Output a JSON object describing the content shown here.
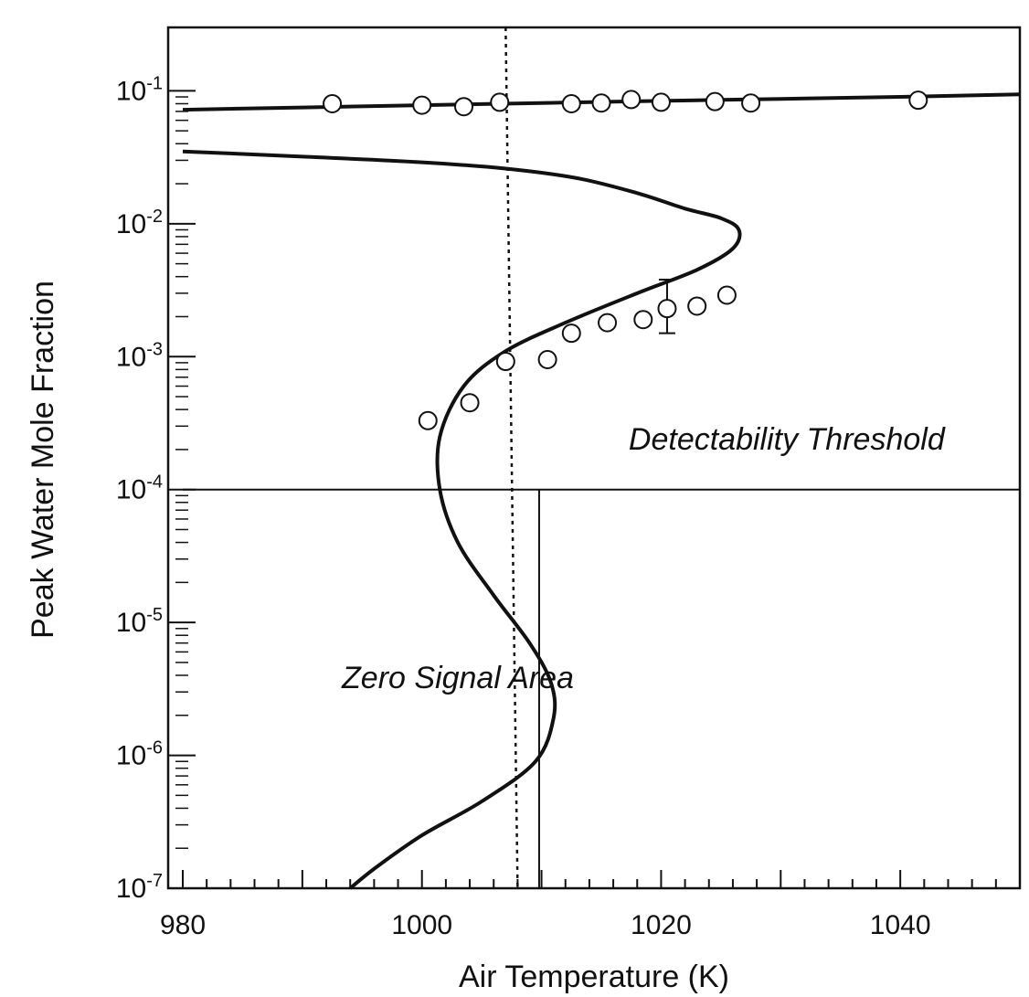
{
  "chart_data": {
    "type": "line",
    "xlabel": "Air Temperature (K)",
    "ylabel": "Peak Water Mole Fraction",
    "xlim": [
      980,
      1050
    ],
    "ylim": [
      1e-07,
      0.3
    ],
    "yscale": "log",
    "x_ticks": [
      980,
      1000,
      1020,
      1040
    ],
    "y_ticks": [
      {
        "value": 1e-07,
        "base": "10",
        "exp": "-7"
      },
      {
        "value": 1e-06,
        "base": "10",
        "exp": "-6"
      },
      {
        "value": 1e-05,
        "base": "10",
        "exp": "-5"
      },
      {
        "value": 0.0001,
        "base": "10",
        "exp": "-4"
      },
      {
        "value": 0.001,
        "base": "10",
        "exp": "-3"
      },
      {
        "value": 0.01,
        "base": "10",
        "exp": "-2"
      },
      {
        "value": 0.1,
        "base": "10",
        "exp": "-1"
      }
    ],
    "grid": false,
    "series": [
      {
        "kind": "line",
        "x": [
          980,
          990,
          1000,
          1010,
          1020,
          1030,
          1040,
          1050
        ],
        "y": [
          0.072,
          0.075,
          0.078,
          0.081,
          0.084,
          0.087,
          0.09,
          0.094
        ]
      },
      {
        "kind": "line",
        "x": [
          980,
          990,
          1000,
          1007,
          1013,
          1018,
          1022,
          1025,
          1026.5,
          1026,
          1023,
          1018,
          1012,
          1007,
          1003.5,
          1001.5,
          1001.5,
          1003,
          1006,
          1009,
          1010.8,
          1011,
          1009.5,
          1005,
          1000,
          996,
          994
        ],
        "y": [
          0.035,
          0.032,
          0.029,
          0.026,
          0.022,
          0.017,
          0.013,
          0.011,
          0.009,
          0.0065,
          0.0045,
          0.003,
          0.0018,
          0.0011,
          0.0006,
          0.00025,
          0.0001,
          4e-05,
          1.6e-05,
          7e-06,
          3.5e-06,
          1.9e-06,
          9e-07,
          4.5e-07,
          2.5e-07,
          1.4e-07,
          1e-07
        ]
      },
      {
        "kind": "scatter",
        "x": [
          992.5,
          1000,
          1003.5,
          1006.5,
          1012.5,
          1015,
          1017.5,
          1020,
          1024.5,
          1027.5,
          1041.5
        ],
        "y": [
          0.08,
          0.078,
          0.076,
          0.082,
          0.08,
          0.081,
          0.086,
          0.082,
          0.083,
          0.081,
          0.085
        ]
      },
      {
        "kind": "scatter",
        "x": [
          1000.5,
          1004,
          1007,
          1010.5,
          1012.5,
          1015.5,
          1018.5,
          1020.5,
          1023,
          1025.5
        ],
        "y": [
          0.00033,
          0.00045,
          0.00092,
          0.00095,
          0.0015,
          0.0018,
          0.0019,
          0.0023,
          0.0024,
          0.0029
        ],
        "error_bar": {
          "x": 1020.5,
          "low": 0.0015,
          "high": 0.0038
        }
      },
      {
        "kind": "vline",
        "style": "dotted",
        "x": [
          1007,
          1008
        ],
        "y": [
          0.3,
          1e-07
        ]
      },
      {
        "kind": "vline",
        "style": "solid",
        "x": [
          1009.8,
          1009.8
        ],
        "y": [
          0.0001,
          1e-07
        ]
      },
      {
        "kind": "hline",
        "style": "solid",
        "x": [
          980,
          1050
        ],
        "y": [
          0.0001,
          0.0001
        ]
      }
    ],
    "annotations": [
      {
        "text": "Detectability Threshold",
        "x": 1030.5,
        "y": 0.0002
      },
      {
        "text": "Zero Signal Area",
        "x": 1003,
        "y": 3.2e-06
      }
    ]
  }
}
